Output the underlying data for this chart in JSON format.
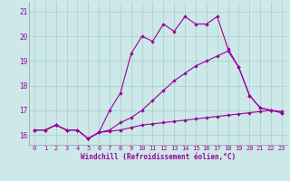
{
  "xlabel": "Windchill (Refroidissement éolien,°C)",
  "background_color": "#cce8e8",
  "grid_color": "#aacccc",
  "line_color": "#990099",
  "xlim": [
    -0.5,
    23.5
  ],
  "ylim": [
    15.6,
    21.4
  ],
  "yticks": [
    16,
    17,
    18,
    19,
    20,
    21
  ],
  "xticks": [
    0,
    1,
    2,
    3,
    4,
    5,
    6,
    7,
    8,
    9,
    10,
    11,
    12,
    13,
    14,
    15,
    16,
    17,
    18,
    19,
    20,
    21,
    22,
    23
  ],
  "series1": [
    16.2,
    16.2,
    16.4,
    16.2,
    16.2,
    15.85,
    16.1,
    16.15,
    16.2,
    16.3,
    16.4,
    16.45,
    16.5,
    16.55,
    16.6,
    16.65,
    16.7,
    16.75,
    16.8,
    16.85,
    16.9,
    16.95,
    17.0,
    16.95
  ],
  "series2": [
    16.2,
    16.2,
    16.4,
    16.2,
    16.2,
    15.85,
    16.1,
    16.2,
    16.5,
    16.7,
    17.0,
    17.4,
    17.8,
    18.2,
    18.5,
    18.8,
    19.0,
    19.2,
    19.4,
    18.75,
    17.6,
    17.1,
    17.0,
    16.9
  ],
  "series3": [
    16.2,
    16.2,
    16.4,
    16.2,
    16.2,
    15.85,
    16.1,
    17.0,
    17.7,
    19.3,
    20.0,
    19.8,
    20.5,
    20.2,
    20.8,
    20.5,
    20.5,
    20.8,
    19.5,
    18.75,
    17.6,
    17.1,
    17.0,
    16.9
  ],
  "tick_fontsize": 5,
  "xlabel_fontsize": 5.5
}
